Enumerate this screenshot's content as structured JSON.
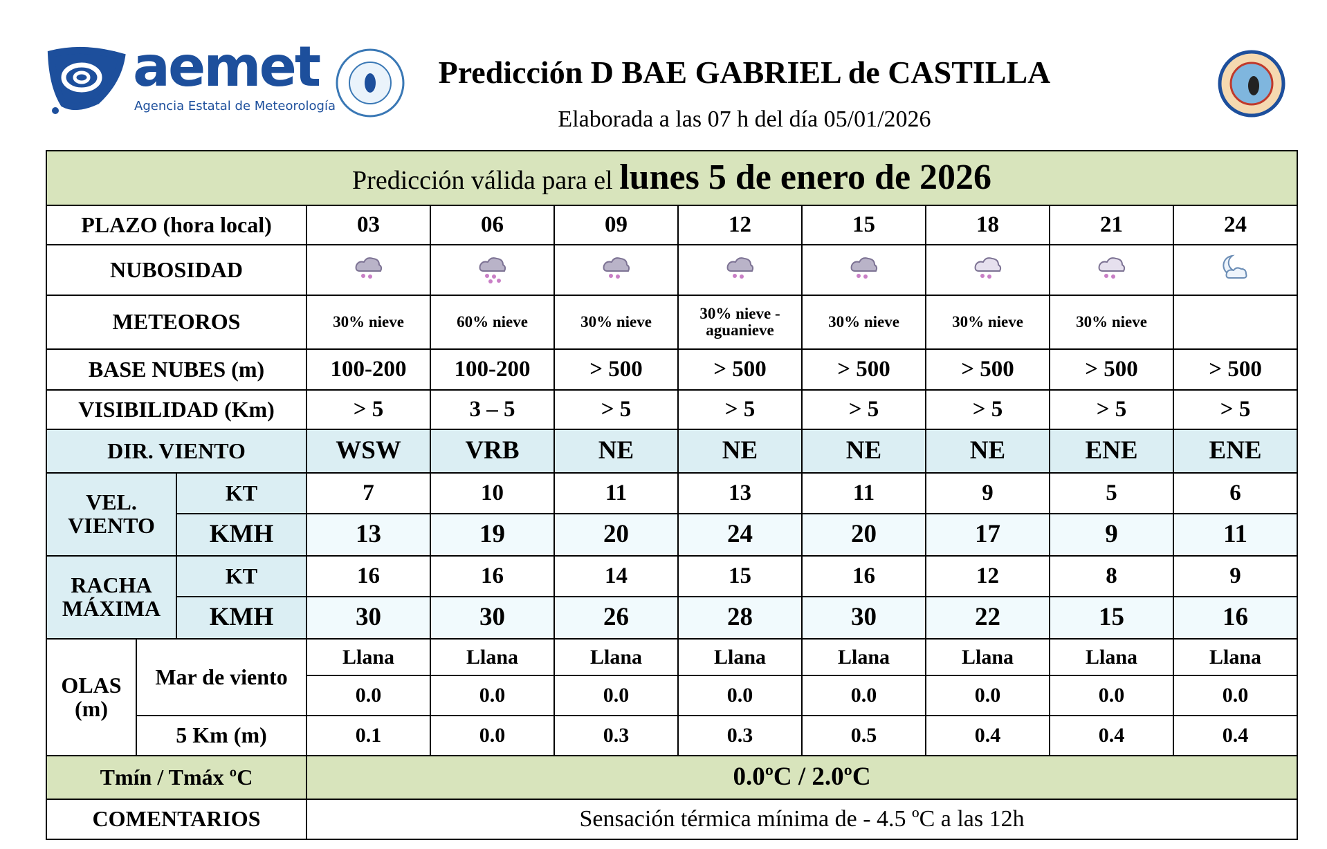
{
  "header": {
    "logo_name": "aemet",
    "logo_subtitle": "Agencia Estatal de Meteorología",
    "title": "Predicción D BAE GABRIEL de CASTILLA",
    "subtitle": "Elaborada a las 07 h del día 05/01/2026"
  },
  "table": {
    "banner_prefix": "Predicción válida para el",
    "banner_date": "lunes 5 de enero de 2026",
    "plazo": {
      "label": "PLAZO (hora local)",
      "values": [
        "03",
        "06",
        "09",
        "12",
        "15",
        "18",
        "21",
        "24"
      ]
    },
    "nubosidad": {
      "label": "NUBOSIDAD"
    },
    "meteoros": {
      "label": "METEOROS",
      "values": [
        "30% nieve",
        "60% nieve",
        "30% nieve",
        "30% nieve - aguanieve",
        "30% nieve",
        "30% nieve",
        "30% nieve",
        null
      ]
    },
    "base_nubes": {
      "label": "BASE NUBES (m)",
      "values": [
        "100-200",
        "100-200",
        "> 500",
        "> 500",
        "> 500",
        "> 500",
        "> 500",
        "> 500"
      ]
    },
    "visibilidad": {
      "label": "VISIBILIDAD (Km)",
      "values": [
        "> 5",
        "3 – 5",
        "> 5",
        "> 5",
        "> 5",
        "> 5",
        "> 5",
        "> 5"
      ]
    },
    "dir_viento": {
      "label": "DIR. VIENTO",
      "values": [
        "WSW",
        "VRB",
        "NE",
        "NE",
        "NE",
        "NE",
        "ENE",
        "ENE"
      ]
    },
    "vel_viento": {
      "label": "VEL. VIENTO",
      "kt": {
        "label": "KT",
        "values": [
          "7",
          "10",
          "11",
          "13",
          "11",
          "9",
          "5",
          "6"
        ]
      },
      "kmh": {
        "label": "KMH",
        "values": [
          "13",
          "19",
          "20",
          "24",
          "20",
          "17",
          "9",
          "11"
        ]
      }
    },
    "racha": {
      "label": "RACHA MÁXIMA",
      "kt": {
        "label": "KT",
        "values": [
          "16",
          "16",
          "14",
          "15",
          "16",
          "12",
          "8",
          "9"
        ]
      },
      "kmh": {
        "label": "KMH",
        "values": [
          "30",
          "30",
          "26",
          "28",
          "30",
          "22",
          "15",
          "16"
        ]
      }
    },
    "olas": {
      "label": "OLAS (m)",
      "mar_viento": {
        "label": "Mar de viento",
        "state": [
          "Llana",
          "Llana",
          "Llana",
          "Llana",
          "Llana",
          "Llana",
          "Llana",
          "Llana"
        ],
        "height": [
          "0.0",
          "0.0",
          "0.0",
          "0.0",
          "0.0",
          "0.0",
          "0.0",
          "0.0"
        ]
      },
      "five_km": {
        "label": "5 Km (m)",
        "values": [
          "0.1",
          "0.0",
          "0.3",
          "0.3",
          "0.5",
          "0.4",
          "0.4",
          "0.4"
        ]
      }
    },
    "temperatura": {
      "label": "Tmín / Tmáx ºC",
      "value": "0.0ºC / 2.0ºC"
    },
    "comentarios": {
      "label": "COMENTARIOS",
      "value": "Sensación térmica mínima de - 4.5 ºC a las 12h"
    }
  }
}
